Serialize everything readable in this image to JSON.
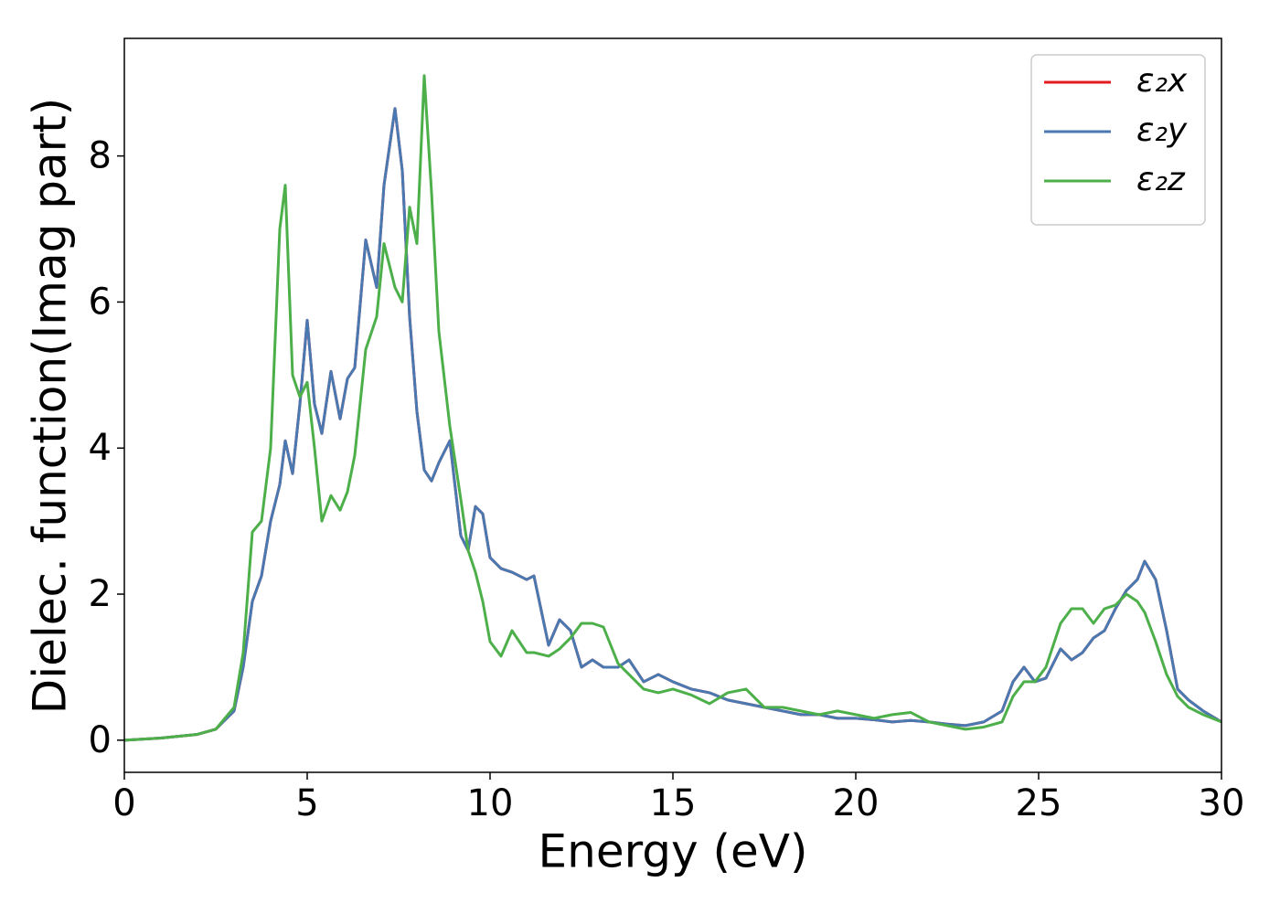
{
  "chart_data": {
    "type": "line",
    "x_label": "Energy (eV)",
    "y_label": "Dielec. function(Imag part)",
    "x": [
      0,
      1,
      2,
      2.5,
      3,
      3.25,
      3.5,
      3.75,
      4,
      4.25,
      4.4,
      4.6,
      4.8,
      5,
      5.2,
      5.4,
      5.65,
      5.9,
      6.1,
      6.3,
      6.6,
      6.9,
      7.1,
      7.4,
      7.6,
      7.8,
      8.0,
      8.2,
      8.4,
      8.6,
      8.9,
      9.2,
      9.4,
      9.6,
      9.8,
      10.0,
      10.3,
      10.6,
      11.0,
      11.2,
      11.6,
      11.9,
      12.2,
      12.5,
      12.8,
      13.1,
      13.5,
      13.8,
      14.2,
      14.6,
      15,
      15.5,
      16,
      16.5,
      17,
      17.5,
      18,
      18.5,
      19,
      19.5,
      20,
      20.5,
      21,
      21.5,
      22,
      22.5,
      23,
      23.5,
      24,
      24.3,
      24.6,
      24.9,
      25.2,
      25.6,
      25.9,
      26.2,
      26.5,
      26.8,
      27.1,
      27.4,
      27.7,
      27.9,
      28.2,
      28.5,
      28.8,
      29.1,
      29.5,
      30
    ],
    "series": [
      {
        "name": "ε₂x",
        "color": "#e41a1c",
        "values": [
          0,
          0.03,
          0.08,
          0.15,
          0.4,
          1.0,
          1.9,
          2.25,
          3.0,
          3.5,
          4.1,
          3.65,
          4.6,
          5.75,
          4.6,
          4.2,
          5.05,
          4.4,
          4.95,
          5.1,
          6.85,
          6.2,
          7.6,
          8.65,
          7.8,
          5.8,
          4.5,
          3.7,
          3.55,
          3.8,
          4.1,
          2.8,
          2.6,
          3.2,
          3.1,
          2.5,
          2.35,
          2.3,
          2.2,
          2.25,
          1.3,
          1.65,
          1.5,
          1.0,
          1.1,
          1.0,
          1.0,
          1.1,
          0.8,
          0.9,
          0.8,
          0.7,
          0.65,
          0.55,
          0.5,
          0.45,
          0.4,
          0.35,
          0.35,
          0.3,
          0.3,
          0.28,
          0.25,
          0.27,
          0.25,
          0.22,
          0.2,
          0.25,
          0.4,
          0.8,
          1.0,
          0.8,
          0.85,
          1.25,
          1.1,
          1.2,
          1.4,
          1.5,
          1.8,
          2.05,
          2.2,
          2.45,
          2.2,
          1.5,
          0.7,
          0.55,
          0.4,
          0.25
        ]
      },
      {
        "name": "ε₂y",
        "color": "#4a78b0",
        "values": [
          0,
          0.03,
          0.08,
          0.15,
          0.4,
          1.0,
          1.9,
          2.25,
          3.0,
          3.5,
          4.1,
          3.65,
          4.6,
          5.75,
          4.6,
          4.2,
          5.05,
          4.4,
          4.95,
          5.1,
          6.85,
          6.2,
          7.6,
          8.65,
          7.8,
          5.8,
          4.5,
          3.7,
          3.55,
          3.8,
          4.1,
          2.8,
          2.6,
          3.2,
          3.1,
          2.5,
          2.35,
          2.3,
          2.2,
          2.25,
          1.3,
          1.65,
          1.5,
          1.0,
          1.1,
          1.0,
          1.0,
          1.1,
          0.8,
          0.9,
          0.8,
          0.7,
          0.65,
          0.55,
          0.5,
          0.45,
          0.4,
          0.35,
          0.35,
          0.3,
          0.3,
          0.28,
          0.25,
          0.27,
          0.25,
          0.22,
          0.2,
          0.25,
          0.4,
          0.8,
          1.0,
          0.8,
          0.85,
          1.25,
          1.1,
          1.2,
          1.4,
          1.5,
          1.8,
          2.05,
          2.2,
          2.45,
          2.2,
          1.5,
          0.7,
          0.55,
          0.4,
          0.25
        ]
      },
      {
        "name": "ε₂z",
        "color": "#4daf4a",
        "values": [
          0,
          0.03,
          0.08,
          0.15,
          0.45,
          1.2,
          2.85,
          3.0,
          4.0,
          7.0,
          7.6,
          5.0,
          4.7,
          4.9,
          4.0,
          3.0,
          3.35,
          3.15,
          3.4,
          3.9,
          5.35,
          5.8,
          6.8,
          6.2,
          6.0,
          7.3,
          6.8,
          9.1,
          7.5,
          5.6,
          4.3,
          3.3,
          2.6,
          2.3,
          1.9,
          1.35,
          1.15,
          1.5,
          1.2,
          1.2,
          1.15,
          1.25,
          1.4,
          1.6,
          1.6,
          1.55,
          1.05,
          0.9,
          0.7,
          0.65,
          0.7,
          0.62,
          0.5,
          0.65,
          0.7,
          0.45,
          0.45,
          0.4,
          0.35,
          0.4,
          0.35,
          0.3,
          0.35,
          0.38,
          0.25,
          0.2,
          0.15,
          0.18,
          0.25,
          0.6,
          0.8,
          0.8,
          1.0,
          1.6,
          1.8,
          1.8,
          1.6,
          1.8,
          1.85,
          2.0,
          1.9,
          1.75,
          1.35,
          0.9,
          0.6,
          0.45,
          0.35,
          0.25
        ]
      }
    ],
    "xlim": [
      0,
      30
    ],
    "xticks": [
      0,
      5,
      10,
      15,
      20,
      25,
      30
    ],
    "ylim": [
      -0.44,
      9.61
    ],
    "yticks": [
      0,
      2,
      4,
      6,
      8
    ],
    "grid": false,
    "legend": "upper right"
  }
}
